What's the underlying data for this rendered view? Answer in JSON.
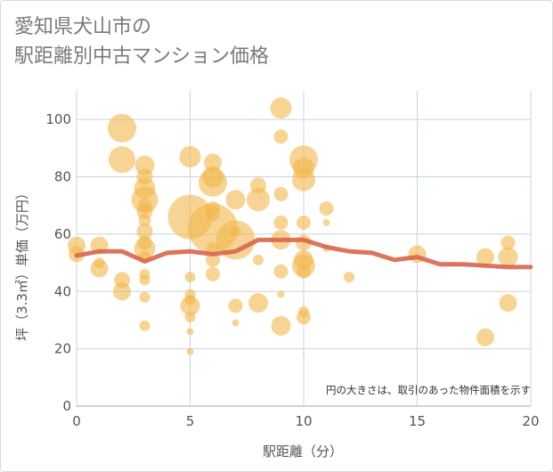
{
  "title_line1": "愛知県犬山市の",
  "title_line2": "駅距離別中古マンション価格",
  "chart_data": {
    "type": "scatter",
    "xlabel": "駅距離（分）",
    "ylabel": "坪（3.3㎡）単価（万円）",
    "note": "円の大きさは、取引のあった物件面積を示す",
    "xlim": [
      0,
      20
    ],
    "ylim": [
      0,
      110
    ],
    "xticks": [
      0,
      5,
      10,
      15,
      20
    ],
    "yticks": [
      0,
      20,
      40,
      60,
      80,
      100
    ],
    "grid": true,
    "colors": {
      "bubble": "#f2b84b",
      "trend": "#d9654b",
      "grid": "#c8d4dc"
    },
    "bubbles": [
      {
        "x": 0,
        "y": 56,
        "size": 10
      },
      {
        "x": 0,
        "y": 53,
        "size": 9
      },
      {
        "x": 1,
        "y": 56,
        "size": 10
      },
      {
        "x": 1,
        "y": 48,
        "size": 10
      },
      {
        "x": 1,
        "y": 50,
        "size": 6
      },
      {
        "x": 2,
        "y": 97,
        "size": 16
      },
      {
        "x": 2,
        "y": 86,
        "size": 15
      },
      {
        "x": 2,
        "y": 44,
        "size": 9
      },
      {
        "x": 2,
        "y": 40,
        "size": 10
      },
      {
        "x": 3,
        "y": 84,
        "size": 11
      },
      {
        "x": 3,
        "y": 80,
        "size": 9
      },
      {
        "x": 3,
        "y": 76,
        "size": 12
      },
      {
        "x": 3,
        "y": 72,
        "size": 15
      },
      {
        "x": 3,
        "y": 70,
        "size": 8
      },
      {
        "x": 3,
        "y": 68,
        "size": 9
      },
      {
        "x": 3,
        "y": 65,
        "size": 7
      },
      {
        "x": 3,
        "y": 61,
        "size": 9
      },
      {
        "x": 3,
        "y": 57,
        "size": 8
      },
      {
        "x": 3,
        "y": 55,
        "size": 12
      },
      {
        "x": 3,
        "y": 52,
        "size": 7
      },
      {
        "x": 3,
        "y": 46,
        "size": 6
      },
      {
        "x": 3,
        "y": 44,
        "size": 6
      },
      {
        "x": 3,
        "y": 38,
        "size": 6
      },
      {
        "x": 3,
        "y": 28,
        "size": 6
      },
      {
        "x": 5,
        "y": 87,
        "size": 12
      },
      {
        "x": 5,
        "y": 66,
        "size": 25
      },
      {
        "x": 5,
        "y": 45,
        "size": 6
      },
      {
        "x": 5,
        "y": 39,
        "size": 6
      },
      {
        "x": 5,
        "y": 37,
        "size": 6
      },
      {
        "x": 5,
        "y": 35,
        "size": 11
      },
      {
        "x": 5,
        "y": 31,
        "size": 6
      },
      {
        "x": 5,
        "y": 26,
        "size": 4
      },
      {
        "x": 5,
        "y": 19,
        "size": 4
      },
      {
        "x": 6,
        "y": 85,
        "size": 10
      },
      {
        "x": 6,
        "y": 80,
        "size": 12
      },
      {
        "x": 6,
        "y": 78,
        "size": 16
      },
      {
        "x": 6,
        "y": 69,
        "size": 8
      },
      {
        "x": 6,
        "y": 67,
        "size": 8
      },
      {
        "x": 6,
        "y": 62,
        "size": 28
      },
      {
        "x": 6,
        "y": 55,
        "size": 7
      },
      {
        "x": 6,
        "y": 51,
        "size": 8
      },
      {
        "x": 6,
        "y": 46,
        "size": 8
      },
      {
        "x": 7,
        "y": 72,
        "size": 11
      },
      {
        "x": 7,
        "y": 61,
        "size": 6
      },
      {
        "x": 7,
        "y": 58,
        "size": 22
      },
      {
        "x": 7,
        "y": 35,
        "size": 8
      },
      {
        "x": 7,
        "y": 29,
        "size": 4
      },
      {
        "x": 8,
        "y": 77,
        "size": 9
      },
      {
        "x": 8,
        "y": 72,
        "size": 13
      },
      {
        "x": 8,
        "y": 51,
        "size": 6
      },
      {
        "x": 8,
        "y": 36,
        "size": 11
      },
      {
        "x": 9,
        "y": 104,
        "size": 12
      },
      {
        "x": 9,
        "y": 94,
        "size": 8
      },
      {
        "x": 9,
        "y": 74,
        "size": 8
      },
      {
        "x": 9,
        "y": 64,
        "size": 8
      },
      {
        "x": 9,
        "y": 58,
        "size": 11
      },
      {
        "x": 9,
        "y": 47,
        "size": 8
      },
      {
        "x": 9,
        "y": 39,
        "size": 4
      },
      {
        "x": 9,
        "y": 28,
        "size": 11
      },
      {
        "x": 10,
        "y": 86,
        "size": 16
      },
      {
        "x": 10,
        "y": 83,
        "size": 12
      },
      {
        "x": 10,
        "y": 79,
        "size": 13
      },
      {
        "x": 10,
        "y": 64,
        "size": 8
      },
      {
        "x": 10,
        "y": 57,
        "size": 9
      },
      {
        "x": 10,
        "y": 51,
        "size": 11
      },
      {
        "x": 10,
        "y": 49,
        "size": 13
      },
      {
        "x": 10,
        "y": 47,
        "size": 8
      },
      {
        "x": 10,
        "y": 33,
        "size": 6
      },
      {
        "x": 10,
        "y": 31,
        "size": 8
      },
      {
        "x": 10,
        "y": 18,
        "size": 1
      },
      {
        "x": 11,
        "y": 69,
        "size": 8
      },
      {
        "x": 11,
        "y": 64,
        "size": 4
      },
      {
        "x": 11,
        "y": 55,
        "size": 4
      },
      {
        "x": 12,
        "y": 45,
        "size": 6
      },
      {
        "x": 15,
        "y": 53,
        "size": 10
      },
      {
        "x": 18,
        "y": 52,
        "size": 10
      },
      {
        "x": 18,
        "y": 24,
        "size": 10
      },
      {
        "x": 19,
        "y": 57,
        "size": 8
      },
      {
        "x": 19,
        "y": 52,
        "size": 11
      },
      {
        "x": 19,
        "y": 36,
        "size": 10
      }
    ],
    "trend": {
      "x": [
        0,
        1,
        2,
        3,
        4,
        5,
        6,
        7,
        8,
        9,
        10,
        11,
        12,
        13,
        14,
        15,
        16,
        17,
        18,
        19,
        20
      ],
      "y": [
        52.5,
        54,
        54,
        50.5,
        53.5,
        54,
        53,
        54,
        58,
        58,
        58,
        55.5,
        54,
        53.5,
        51,
        52,
        49.5,
        49.5,
        49,
        48.5,
        48.5
      ]
    }
  }
}
